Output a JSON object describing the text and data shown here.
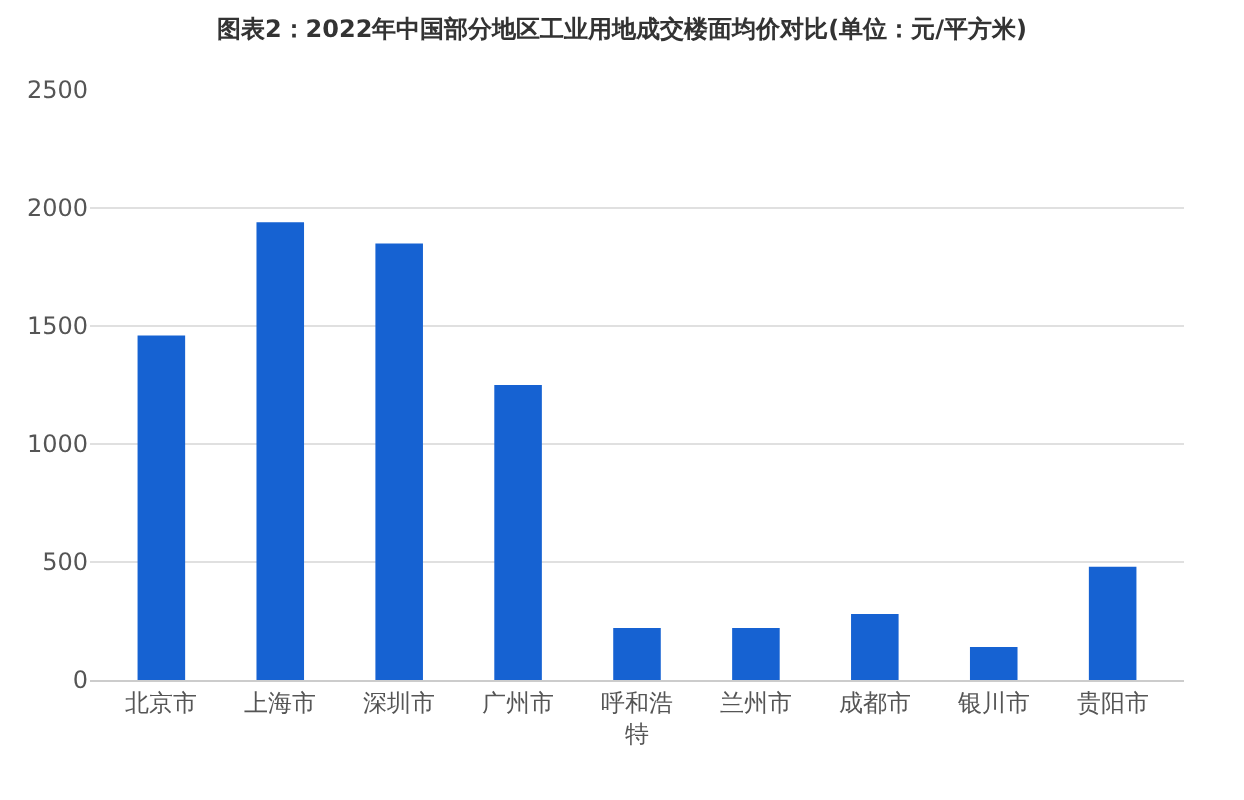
{
  "chart_data": {
    "type": "bar",
    "title": "图表2：2022年中国部分地区工业用地成交楼面均价对比(单位：元/平方米)",
    "categories": [
      "北京市",
      "上海市",
      "深圳市",
      "广州市",
      "呼和浩特",
      "兰州市",
      "成都市",
      "银川市",
      "贵阳市"
    ],
    "values": [
      1460,
      1940,
      1850,
      1250,
      220,
      220,
      280,
      140,
      480
    ],
    "color": "#1662d2",
    "ylim": [
      0,
      2500
    ],
    "yticks": [
      0,
      500,
      1000,
      1500,
      2000,
      2500
    ],
    "grid": "y"
  }
}
